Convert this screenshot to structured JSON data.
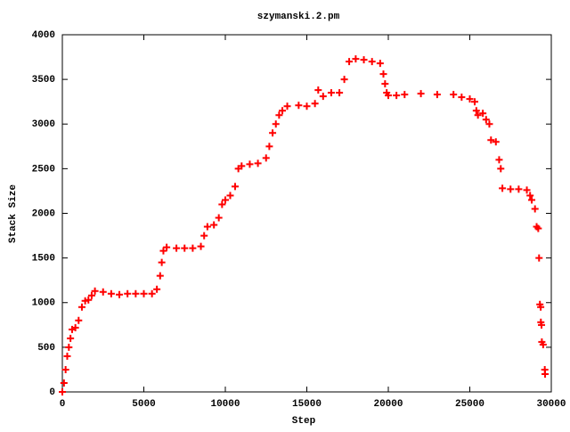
{
  "chart_data": {
    "type": "scatter",
    "title": "szymanski.2.pm",
    "xlabel": "Step",
    "ylabel": "Stack Size",
    "color": "#ff0000",
    "xlim": [
      0,
      30000
    ],
    "ylim": [
      0,
      4000
    ],
    "xticks": [
      0,
      5000,
      10000,
      15000,
      20000,
      25000,
      30000
    ],
    "yticks": [
      0,
      500,
      1000,
      1500,
      2000,
      2500,
      3000,
      3500,
      4000
    ],
    "x": [
      0,
      100,
      200,
      300,
      400,
      500,
      600,
      800,
      1000,
      1200,
      1400,
      1600,
      1800,
      2000,
      2500,
      3000,
      3500,
      4000,
      4500,
      5000,
      5500,
      5800,
      6000,
      6100,
      6200,
      6400,
      7000,
      7500,
      8000,
      8500,
      8700,
      8900,
      9300,
      9600,
      9800,
      10000,
      10300,
      10600,
      10800,
      11000,
      11500,
      12000,
      12500,
      12700,
      12900,
      13100,
      13300,
      13500,
      13800,
      14500,
      15000,
      15500,
      15700,
      16000,
      16500,
      17000,
      17300,
      17600,
      18000,
      18500,
      19000,
      19500,
      19700,
      19800,
      19900,
      20000,
      20500,
      21000,
      22000,
      23000,
      24000,
      24500,
      25000,
      25300,
      25400,
      25500,
      25800,
      26000,
      26200,
      26300,
      26600,
      26800,
      26900,
      27000,
      27500,
      28000,
      28500,
      28700,
      28800,
      29000,
      29100,
      29200,
      29250,
      29300,
      29350,
      29360,
      29400,
      29420,
      29500,
      29600,
      29620
    ],
    "values": [
      0,
      100,
      250,
      400,
      500,
      600,
      700,
      720,
      800,
      950,
      1020,
      1030,
      1080,
      1130,
      1120,
      1100,
      1090,
      1100,
      1100,
      1100,
      1100,
      1150,
      1300,
      1450,
      1580,
      1620,
      1610,
      1610,
      1610,
      1630,
      1750,
      1850,
      1870,
      1950,
      2100,
      2150,
      2200,
      2300,
      2500,
      2530,
      2550,
      2560,
      2620,
      2750,
      2900,
      3000,
      3100,
      3150,
      3200,
      3210,
      3200,
      3230,
      3380,
      3310,
      3350,
      3350,
      3500,
      3700,
      3730,
      3720,
      3700,
      3680,
      3560,
      3450,
      3350,
      3320,
      3320,
      3330,
      3340,
      3330,
      3330,
      3300,
      3280,
      3250,
      3150,
      3100,
      3120,
      3050,
      3000,
      2820,
      2800,
      2600,
      2500,
      2280,
      2270,
      2270,
      2260,
      2200,
      2150,
      2050,
      1850,
      1830,
      1500,
      980,
      950,
      780,
      750,
      560,
      530,
      250,
      200
    ]
  }
}
